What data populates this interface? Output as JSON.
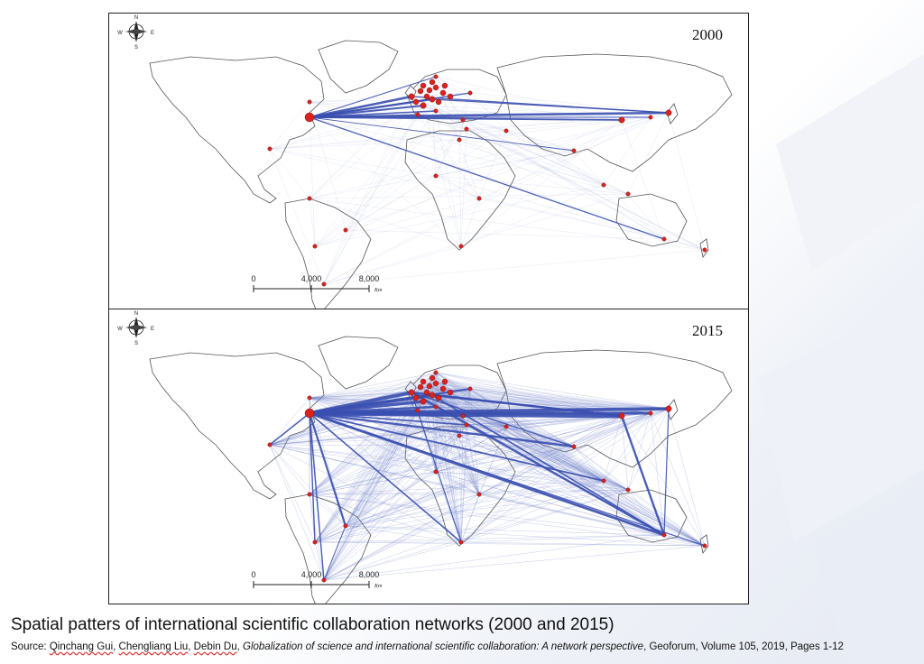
{
  "maps": [
    {
      "id": "panel-2000",
      "year": "2000",
      "density": "low"
    },
    {
      "id": "panel-2015",
      "year": "2015",
      "density": "high"
    }
  ],
  "compass": {
    "n": "N",
    "e": "E",
    "s": "S",
    "w": "W"
  },
  "scale_bar": {
    "ticks": [
      "0",
      "4,000",
      "8,000"
    ],
    "unit": "Km"
  },
  "colors": {
    "link": "#3a4fb0",
    "node": "#d9231f",
    "land_stroke": "#555555"
  },
  "caption": "Spatial patters of international scientific collaboration networks (2000 and 2015)",
  "source": {
    "prefix": "Source: ",
    "author1": "Qinchang Gui",
    "sep1": ", ",
    "author2": "Chengliang Liu",
    "sep2": ", ",
    "author3": "Debin Du",
    "sep3": ", ",
    "title": "Globalization of science and international scientific collaboration: A network perspective",
    "suffix": ", Geoforum, Volume 105, 2019, Pages 1-12"
  }
}
